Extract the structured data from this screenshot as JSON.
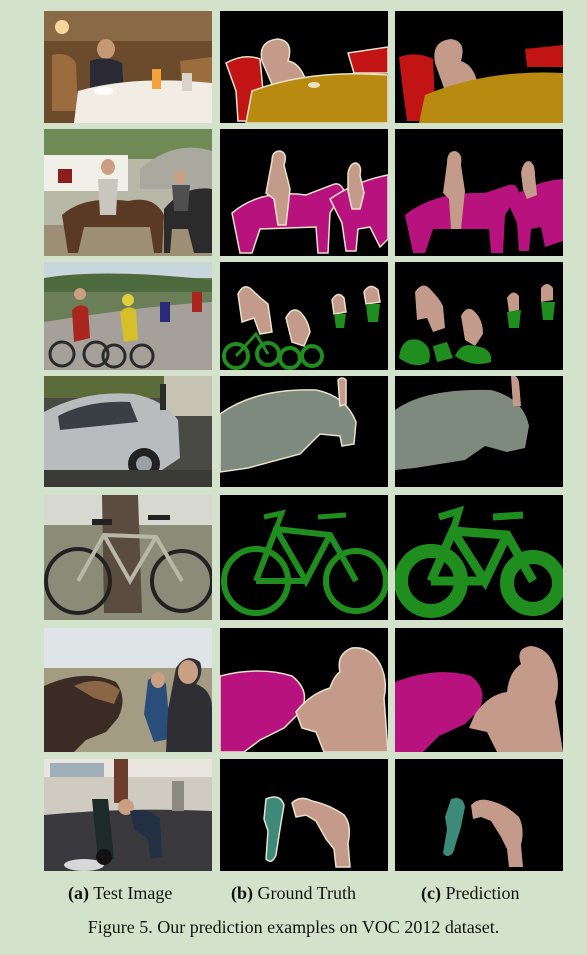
{
  "columns": [
    {
      "letter": "(a)",
      "label": "Test Image"
    },
    {
      "letter": "(b)",
      "label": "Ground Truth"
    },
    {
      "letter": "(c)",
      "label": "Prediction"
    }
  ],
  "figure_caption": "Figure 5. Our prediction examples on VOC 2012 dataset.",
  "colors": {
    "page_background": "#d3e3cb",
    "mask_background": "#000000",
    "person": "#c49a8a",
    "chair": "#c21414",
    "diningtable": "#b98a10",
    "horse": "#b8127f",
    "bicycle": "#1f8e1f",
    "car": "#7f8a7f",
    "motorbike": "#3e8a7a",
    "boundary": "#e8e3c8"
  },
  "rows": [
    {
      "id": "dining",
      "classes": [
        "person",
        "chair",
        "diningtable"
      ]
    },
    {
      "id": "horse-riders",
      "classes": [
        "person",
        "horse"
      ]
    },
    {
      "id": "cyclists",
      "classes": [
        "person",
        "bicycle"
      ]
    },
    {
      "id": "car",
      "classes": [
        "car",
        "person"
      ]
    },
    {
      "id": "bicycle",
      "classes": [
        "bicycle"
      ]
    },
    {
      "id": "horse-people",
      "classes": [
        "horse",
        "person"
      ]
    },
    {
      "id": "motorbike",
      "classes": [
        "motorbike",
        "person"
      ]
    }
  ]
}
